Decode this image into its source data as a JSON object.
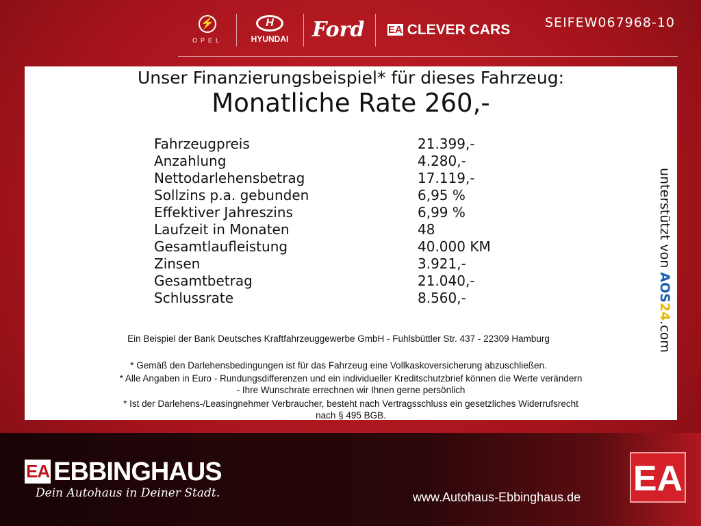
{
  "header": {
    "brands": [
      "OPEL",
      "HYUNDAI",
      "Ford",
      "CLEVER CARS"
    ],
    "ea_mark": "EA",
    "vehicle_code": "SEIFEW067968-10"
  },
  "panel": {
    "title": "Unser Finanzierungsbeispiel* für dieses Fahrzeug:",
    "rate": "Monatliche Rate 260,-",
    "rows": [
      {
        "label": "Fahrzeugpreis",
        "value": "21.399,-"
      },
      {
        "label": "Anzahlung",
        "value": "4.280,-"
      },
      {
        "label": "Nettodarlehensbetrag",
        "value": "17.119,-"
      },
      {
        "label": "Sollzins p.a. gebunden",
        "value": "6,95 %"
      },
      {
        "label": "Effektiver Jahreszins",
        "value": "6,99 %"
      },
      {
        "label": "Laufzeit in Monaten",
        "value": "48"
      },
      {
        "label": "Gesamtlaufleistung",
        "value": "40.000 KM"
      },
      {
        "label": "Zinsen",
        "value": "3.921,-"
      },
      {
        "label": "Gesamtbetrag",
        "value": "21.040,-"
      },
      {
        "label": "Schlussrate",
        "value": "8.560,-"
      }
    ],
    "bank": "Ein Beispiel der Bank Deutsches Kraftfahrzeuggewerbe GmbH - Fuhlsbüttler Str. 437 - 22309 Hamburg",
    "note1": "* Gemäß den Darlehensbedingungen ist für das Fahrzeug eine Vollkaskoversicherung abzuschließen.",
    "note2a": "* Alle Angaben in Euro - Rundungsdifferenzen und ein individueller Kreditschutzbrief können die Werte verändern",
    "note2b": "- Ihre Wunschrate errechnen wir Ihnen gerne persönlich",
    "note3a": "* Ist der Darlehens-/Leasingnehmer Verbraucher, besteht nach Vertragsschluss ein gesetzliches Widerrufsrecht",
    "note3b": "nach § 495 BGB.",
    "side": {
      "prefix": "unterstützt von ",
      "a": "AOS",
      "n": "24",
      ".com": ".com"
    }
  },
  "footer": {
    "ea_mark": "EA",
    "brand": "EBBINGHAUS",
    "slogan": "Dein Autohaus in Deiner Stadt.",
    "url": "www.Autohaus-Ebbinghaus.de"
  }
}
